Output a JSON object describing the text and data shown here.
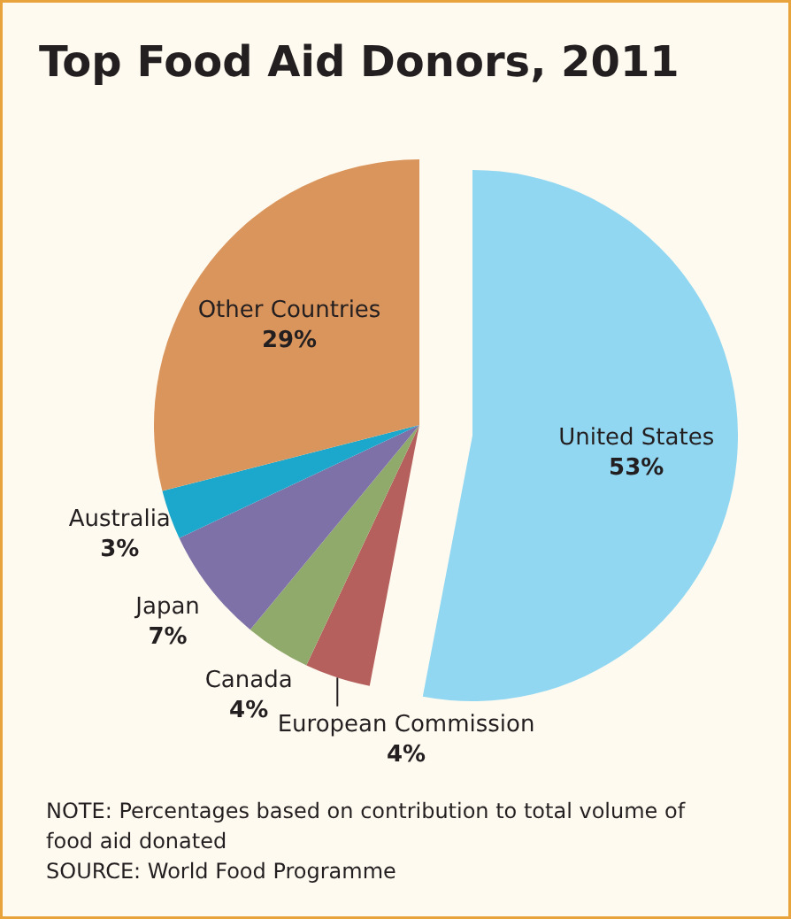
{
  "chart_data": {
    "type": "pie",
    "title": "Top Food Aid Donors, 2011",
    "categories": [
      "United States",
      "European Commission",
      "Canada",
      "Japan",
      "Australia",
      "Other Countries"
    ],
    "values": [
      53,
      4,
      4,
      7,
      3,
      29
    ],
    "colors": [
      "#92d7f1",
      "#b5605d",
      "#90aa6c",
      "#7d71a8",
      "#1ca7cc",
      "#da955c"
    ],
    "value_labels": [
      "53%",
      "4%",
      "4%",
      "7%",
      "3%",
      "29%"
    ],
    "annotations": [
      "NOTE: Percentages based on contribution to total volume of food aid donated",
      "SOURCE: World Food Programme"
    ]
  }
}
